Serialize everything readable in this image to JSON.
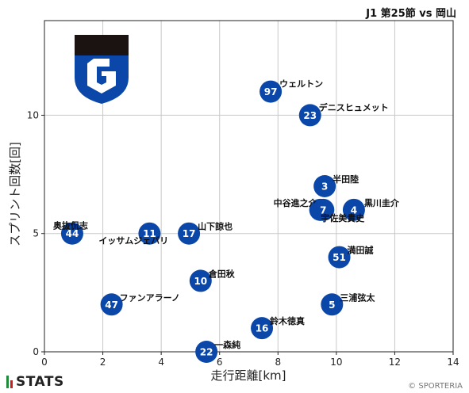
{
  "header": {
    "title": "J1 第25節 vs 岡山"
  },
  "chart_data": {
    "type": "scatter",
    "xlabel": "走行距離[km]",
    "ylabel": "スプリント回数[回]",
    "xlim": [
      0,
      14
    ],
    "ylim": [
      0,
      14
    ],
    "xticks": [
      0,
      2,
      4,
      6,
      8,
      10,
      12,
      14
    ],
    "yticks": [
      0,
      5,
      10
    ],
    "grid": true,
    "marker_color": "#0a47a9",
    "points": [
      {
        "number": "97",
        "name": "ウェルトン",
        "x": 7.75,
        "y": 11
      },
      {
        "number": "23",
        "name": "デニスヒュメット",
        "x": 9.1,
        "y": 10
      },
      {
        "number": "3",
        "name": "半田陸",
        "x": 9.6,
        "y": 7
      },
      {
        "number": "4",
        "name": "黒川圭介",
        "x": 10.6,
        "y": 6
      },
      {
        "number": "27",
        "name": "中谷進之介",
        "x": 9.45,
        "y": 6
      },
      {
        "number": "7",
        "name": "宇佐美貴史",
        "x": 9.55,
        "y": 6
      },
      {
        "number": "44",
        "name": "奥抜侃志",
        "x": 0.95,
        "y": 5
      },
      {
        "number": "11",
        "name": "イッサムジェバリ",
        "x": 3.6,
        "y": 5
      },
      {
        "number": "17",
        "name": "山下諒也",
        "x": 4.95,
        "y": 5
      },
      {
        "number": "51",
        "name": "満田誠",
        "x": 10.1,
        "y": 4
      },
      {
        "number": "10",
        "name": "倉田秋",
        "x": 5.35,
        "y": 3
      },
      {
        "number": "47",
        "name": "ファンアラーノ",
        "x": 2.3,
        "y": 2
      },
      {
        "number": "5",
        "name": "三浦弦太",
        "x": 9.85,
        "y": 2
      },
      {
        "number": "16",
        "name": "鈴木徳真",
        "x": 7.45,
        "y": 1
      },
      {
        "number": "22",
        "name": "一森純",
        "x": 5.55,
        "y": 0
      }
    ]
  },
  "logo": {
    "primary_color": "#0a47a9",
    "dark_color": "#1a1311"
  },
  "footer": {
    "brand": "STATS",
    "copyright": "© SPORTERIA"
  },
  "brand_colors": {
    "stats_bar_1": "#1e8a3a",
    "stats_bar_2": "#c82121"
  }
}
